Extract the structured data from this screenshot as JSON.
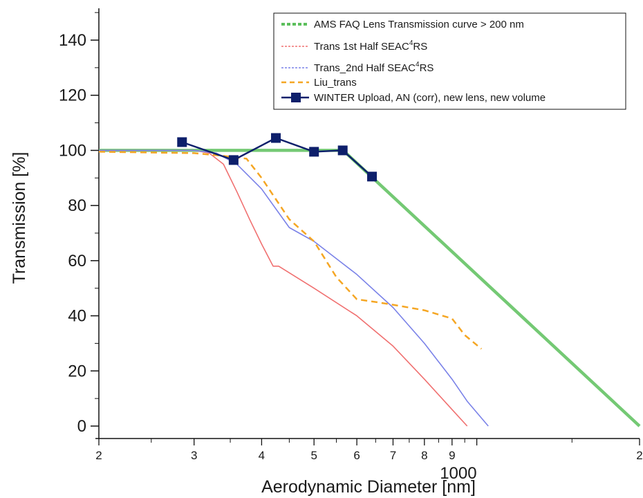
{
  "chart_data": {
    "type": "line",
    "xlabel": "Aerodynamic Diameter [nm]",
    "ylabel": "Transmission [%]",
    "x_scale": "log",
    "xlim": [
      200,
      2000
    ],
    "ylim": [
      0,
      150
    ],
    "y_ticks": [
      0,
      20,
      40,
      60,
      80,
      100,
      120,
      140
    ],
    "x_ticks": [
      {
        "value": 200,
        "label": "2"
      },
      {
        "value": 300,
        "label": "3"
      },
      {
        "value": 400,
        "label": "4"
      },
      {
        "value": 500,
        "label": "5"
      },
      {
        "value": 600,
        "label": "6"
      },
      {
        "value": 700,
        "label": "7"
      },
      {
        "value": 800,
        "label": "8"
      },
      {
        "value": 900,
        "label": "9"
      },
      {
        "value": 1000,
        "label": "1000"
      },
      {
        "value": 2000,
        "label": "2"
      }
    ],
    "x_minor_ticks": [
      250,
      350,
      450,
      550,
      650,
      750,
      850,
      950,
      1500
    ],
    "legend_position": "top-right",
    "grid": false,
    "series": [
      {
        "name": "AMS FAQ Lens Transmission curve > 200 nm",
        "color": "#5cbf5c",
        "style": "solid-thick",
        "marker": "none",
        "x": [
          200,
          566,
          2000
        ],
        "y": [
          100,
          100,
          0
        ]
      },
      {
        "name": "Trans 1st Half SEAC4RS",
        "name_parts": [
          "Trans 1st Half SEAC",
          "4",
          "RS"
        ],
        "color": "#f07070",
        "style": "solid",
        "marker": "none",
        "x": [
          200,
          300,
          320,
          340,
          360,
          380,
          400,
          420,
          430,
          500,
          600,
          700,
          800,
          900,
          960
        ],
        "y": [
          100,
          100,
          99,
          95,
          85,
          75,
          66,
          58,
          58,
          50,
          40,
          29,
          17,
          6,
          0
        ]
      },
      {
        "name": "Trans_2nd Half SEAC4RS",
        "name_parts": [
          "Trans_2nd Half SEAC",
          "4",
          "RS"
        ],
        "color": "#7a82e8",
        "style": "solid",
        "marker": "none",
        "x": [
          200,
          300,
          330,
          360,
          400,
          450,
          500,
          600,
          700,
          800,
          900,
          960,
          1050
        ],
        "y": [
          100,
          100,
          99,
          95,
          86,
          72,
          67,
          55,
          43,
          30,
          17,
          9,
          0
        ]
      },
      {
        "name": "Liu_trans",
        "color": "#f5a623",
        "style": "dashed",
        "marker": "none",
        "x": [
          200,
          300,
          340,
          375,
          400,
          450,
          500,
          550,
          600,
          650,
          700,
          800,
          900,
          950,
          1020
        ],
        "y": [
          99.5,
          99,
          98,
          97,
          90,
          75,
          67,
          54,
          46,
          45,
          44,
          42,
          39,
          33,
          28
        ]
      },
      {
        "name": "WINTER Upload, AN (corr), new lens, new volume",
        "color": "#0d1f6b",
        "style": "solid-marked",
        "marker": "square",
        "x": [
          285,
          355,
          425,
          500,
          565,
          640
        ],
        "y": [
          103,
          96.5,
          104.5,
          99.5,
          100,
          90.5
        ]
      }
    ]
  }
}
